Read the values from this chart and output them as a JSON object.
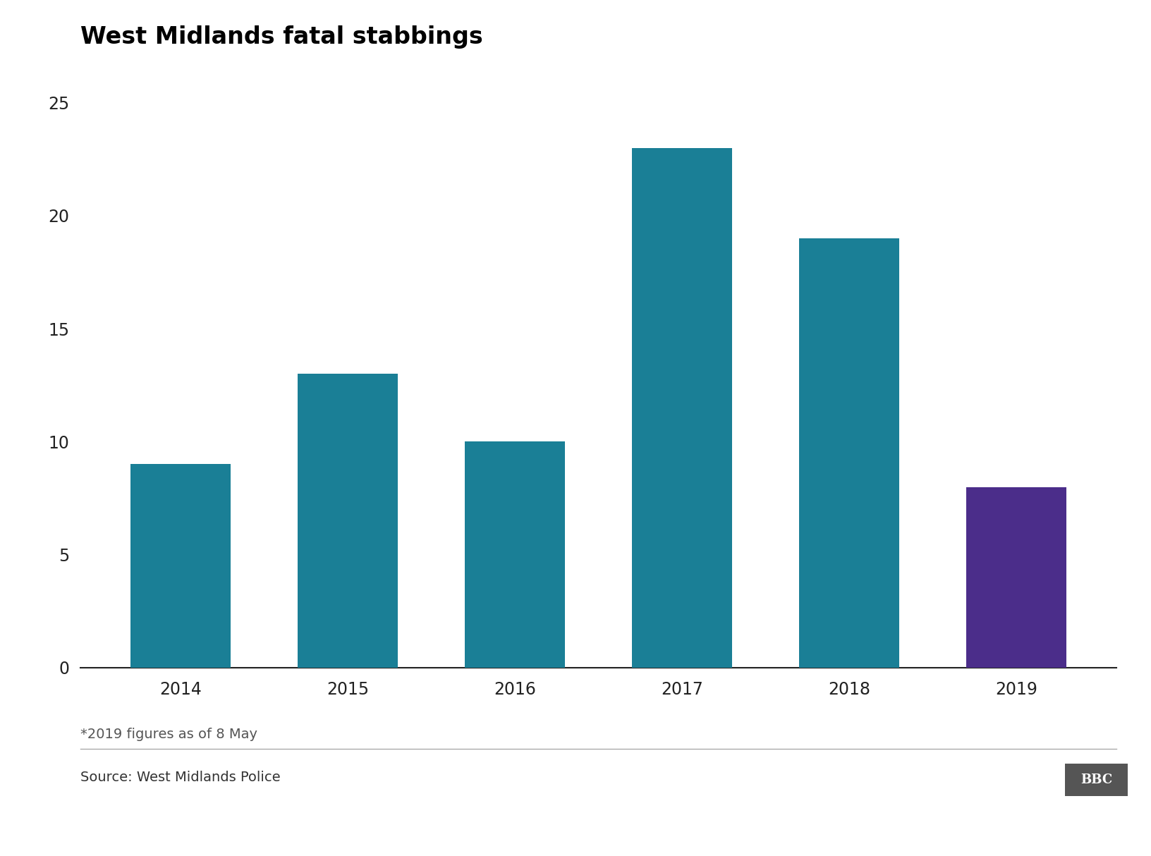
{
  "title": "West Midlands fatal stabbings",
  "categories": [
    "2014",
    "2015",
    "2016",
    "2017",
    "2018",
    "2019"
  ],
  "values": [
    9,
    13,
    10,
    23,
    19,
    8
  ],
  "bar_colors": [
    "#1a7f96",
    "#1a7f96",
    "#1a7f96",
    "#1a7f96",
    "#1a7f96",
    "#4b2d8a"
  ],
  "ylim": [
    0,
    25
  ],
  "yticks": [
    0,
    5,
    10,
    15,
    20,
    25
  ],
  "title_fontsize": 24,
  "tick_fontsize": 17,
  "footnote": "*2019 figures as of 8 May",
  "source": "Source: West Midlands Police",
  "bbc_label": "BBC",
  "background_color": "#ffffff",
  "bar_width": 0.6,
  "footnote_fontsize": 14,
  "source_fontsize": 14
}
